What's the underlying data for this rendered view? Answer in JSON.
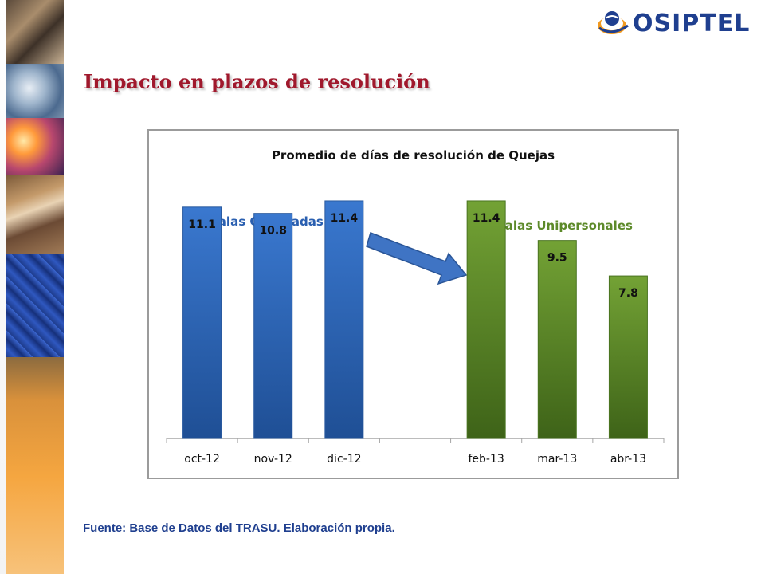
{
  "slide": {
    "title": "Impacto en plazos de resolución",
    "logo_text": "OSIPTEL",
    "source": "Fuente: Base de Datos del TRASU.  Elaboración propia."
  },
  "chart_data": {
    "type": "bar",
    "title": "Promedio de días de resolución de Quejas",
    "categories": [
      "oct-12",
      "nov-12",
      "dic-12",
      "",
      "feb-13",
      "mar-13",
      "abr-13"
    ],
    "values": [
      11.1,
      10.8,
      11.4,
      null,
      11.4,
      9.5,
      7.8
    ],
    "groups": [
      {
        "name": "Salas Colegiadas",
        "categories": [
          "oct-12",
          "nov-12",
          "dic-12"
        ],
        "color": "#2f69b8"
      },
      {
        "name": "Salas Unipersonales",
        "categories": [
          "feb-13",
          "mar-13",
          "abr-13"
        ],
        "color": "#5c8a26"
      }
    ],
    "annotation": "arrow from Salas Colegiadas toward Salas Unipersonales",
    "ylim": [
      0,
      14
    ],
    "data_labels": true,
    "grid": false,
    "legend": "none"
  },
  "colors": {
    "title": "#a0182c",
    "source": "#1f3f8f",
    "arrow": "#3f74c4"
  }
}
